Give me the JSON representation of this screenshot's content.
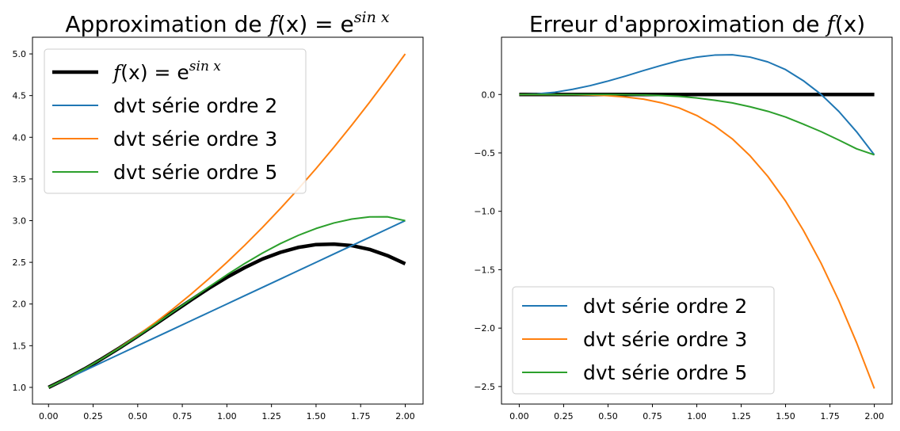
{
  "chart_data": [
    {
      "type": "line",
      "title": "Approximation de f(x) = e^{sin x}",
      "title_parts": {
        "prefix": "Approximation de ",
        "math_f": "f",
        "math_rest": "(x) = e",
        "sup": "sin x"
      },
      "xlim": [
        -0.09,
        2.1
      ],
      "ylim": [
        0.8,
        5.2
      ],
      "xticks": [
        0.0,
        0.25,
        0.5,
        0.75,
        1.0,
        1.25,
        1.5,
        1.75,
        2.0
      ],
      "xtick_labels": [
        "0.00",
        "0.25",
        "0.50",
        "0.75",
        "1.00",
        "1.25",
        "1.50",
        "1.75",
        "2.00"
      ],
      "yticks": [
        1.0,
        1.5,
        2.0,
        2.5,
        3.0,
        3.5,
        4.0,
        4.5,
        5.0
      ],
      "ytick_labels": [
        "1.0",
        "1.5",
        "2.0",
        "2.5",
        "3.0",
        "3.5",
        "4.0",
        "4.5",
        "5.0"
      ],
      "legend_position": "top-left",
      "x": [
        0.0,
        0.1,
        0.2,
        0.3,
        0.4,
        0.5,
        0.6,
        0.7,
        0.8,
        0.9,
        1.0,
        1.1,
        1.2,
        1.3,
        1.4,
        1.5,
        1.6,
        1.7,
        1.8,
        1.9,
        2.0
      ],
      "series": [
        {
          "name": "f(x) = e^{sin x}",
          "legend_math": {
            "f": "f",
            "rest": "(x) = e",
            "sup": "sin x"
          },
          "color": "#000000",
          "width": 4.5,
          "values": [
            1.0,
            1.105,
            1.219,
            1.344,
            1.476,
            1.615,
            1.758,
            1.905,
            2.049,
            2.19,
            2.32,
            2.437,
            2.54,
            2.62,
            2.679,
            2.713,
            2.718,
            2.701,
            2.655,
            2.581,
            2.483
          ]
        },
        {
          "name": "dvt série ordre 2",
          "color": "#1f77b4",
          "width": 2,
          "values": [
            1.0,
            1.1,
            1.2,
            1.3,
            1.4,
            1.5,
            1.6,
            1.7,
            1.8,
            1.9,
            2.0,
            2.1,
            2.2,
            2.3,
            2.4,
            2.5,
            2.6,
            2.7,
            2.8,
            2.9,
            3.0
          ]
        },
        {
          "name": "dvt série ordre 3",
          "color": "#ff7f0e",
          "width": 2,
          "values": [
            1.0,
            1.105,
            1.22,
            1.345,
            1.48,
            1.625,
            1.78,
            1.945,
            2.12,
            2.305,
            2.5,
            2.705,
            2.92,
            3.145,
            3.38,
            3.625,
            3.88,
            4.145,
            4.42,
            4.705,
            5.0
          ]
        },
        {
          "name": "dvt série ordre 5",
          "color": "#2ca02c",
          "width": 2,
          "values": [
            1.0,
            1.105,
            1.22,
            1.344,
            1.476,
            1.615,
            1.76,
            1.909,
            2.058,
            2.206,
            2.35,
            2.486,
            2.612,
            2.725,
            2.823,
            2.906,
            2.972,
            3.019,
            3.045,
            3.046,
            3.0
          ]
        }
      ]
    },
    {
      "type": "line",
      "title": "Erreur d'approximation de f(x)",
      "title_parts": {
        "prefix": "Erreur d'approximation de ",
        "math_f": "f",
        "math_rest": "(x)"
      },
      "xlim": [
        -0.1,
        2.1
      ],
      "ylim": [
        -2.65,
        0.49
      ],
      "xticks": [
        0.0,
        0.25,
        0.5,
        0.75,
        1.0,
        1.25,
        1.5,
        1.75,
        2.0
      ],
      "xtick_labels": [
        "0.00",
        "0.25",
        "0.50",
        "0.75",
        "1.00",
        "1.25",
        "1.50",
        "1.75",
        "2.00"
      ],
      "yticks": [
        0.0,
        -0.5,
        -1.0,
        -1.5,
        -2.0,
        -2.5
      ],
      "ytick_labels": [
        "0.0",
        "−0.5",
        "−1.0",
        "−1.5",
        "−2.0",
        "−2.5"
      ],
      "legend_position": "bottom-left",
      "x": [
        0.0,
        0.1,
        0.2,
        0.3,
        0.4,
        0.5,
        0.6,
        0.7,
        0.8,
        0.9,
        1.0,
        1.1,
        1.2,
        1.3,
        1.4,
        1.5,
        1.6,
        1.7,
        1.8,
        1.9,
        2.0
      ],
      "series": [
        {
          "name": "",
          "color": "#000000",
          "width": 4.5,
          "values": [
            0,
            0,
            0,
            0,
            0,
            0,
            0,
            0,
            0,
            0,
            0,
            0,
            0,
            0,
            0,
            0,
            0,
            0,
            0,
            0,
            0
          ]
        },
        {
          "name": "dvt série ordre 2",
          "color": "#1f77b4",
          "width": 2,
          "values": [
            0.0,
            0.005,
            0.019,
            0.044,
            0.076,
            0.115,
            0.158,
            0.205,
            0.249,
            0.29,
            0.32,
            0.337,
            0.34,
            0.32,
            0.279,
            0.213,
            0.118,
            0.001,
            -0.145,
            -0.319,
            -0.517
          ]
        },
        {
          "name": "dvt série ordre 3",
          "color": "#ff7f0e",
          "width": 2,
          "values": [
            0.0,
            0.0,
            -0.001,
            -0.001,
            -0.004,
            -0.01,
            -0.022,
            -0.04,
            -0.071,
            -0.115,
            -0.18,
            -0.268,
            -0.38,
            -0.525,
            -0.701,
            -0.912,
            -1.162,
            -1.444,
            -1.765,
            -2.124,
            -2.517
          ]
        },
        {
          "name": "dvt série ordre 5",
          "color": "#2ca02c",
          "width": 2,
          "values": [
            0.0,
            0.0,
            -0.001,
            0.0,
            0.0,
            0.0,
            -0.002,
            -0.004,
            -0.009,
            -0.016,
            -0.03,
            -0.049,
            -0.072,
            -0.105,
            -0.144,
            -0.193,
            -0.254,
            -0.318,
            -0.39,
            -0.465,
            -0.517
          ]
        }
      ]
    }
  ]
}
